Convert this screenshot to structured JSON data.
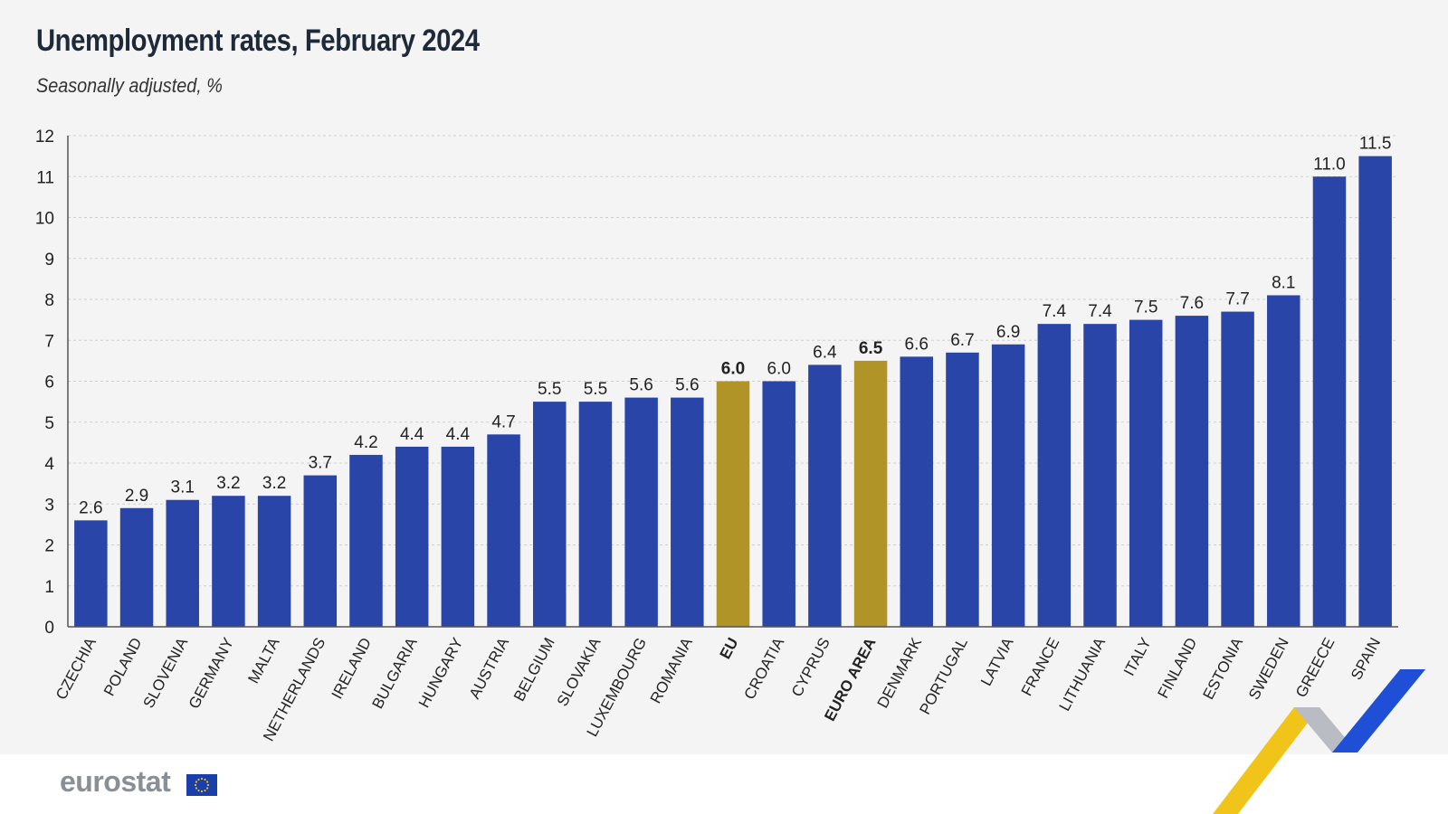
{
  "header": {
    "title": "Unemployment rates, February 2024",
    "subtitle": "Seasonally adjusted, %"
  },
  "footer": {
    "logo_text": "eurostat",
    "logo_flag_icon": "eu-flag-icon"
  },
  "colors": {
    "bar": "#2a45a8",
    "highlight": "#b09428",
    "grid": "#cfcfcf",
    "axis": "#555555",
    "text": "#222222",
    "deco_yellow": "#f0c419",
    "deco_grey": "#b9bcc2",
    "deco_blue": "#1f4fd6"
  },
  "chart_data": {
    "type": "bar",
    "title": "Unemployment rates, February 2024",
    "subtitle": "Seasonally adjusted, %",
    "xlabel": "",
    "ylabel": "",
    "ylim": [
      0,
      12
    ],
    "yticks": [
      0,
      1,
      2,
      3,
      4,
      5,
      6,
      7,
      8,
      9,
      10,
      11,
      12
    ],
    "grid": true,
    "categories": [
      "CZECHIA",
      "POLAND",
      "SLOVENIA",
      "GERMANY",
      "MALTA",
      "NETHERLANDS",
      "IRELAND",
      "BULGARIA",
      "HUNGARY",
      "AUSTRIA",
      "BELGIUM",
      "SLOVAKIA",
      "LUXEMBOURG",
      "ROMANIA",
      "EU",
      "CROATIA",
      "CYPRUS",
      "EURO AREA",
      "DENMARK",
      "PORTUGAL",
      "LATVIA",
      "FRANCE",
      "LITHUANIA",
      "ITALY",
      "FINLAND",
      "ESTONIA",
      "SWEDEN",
      "GREECE",
      "SPAIN"
    ],
    "values": [
      2.6,
      2.9,
      3.1,
      3.2,
      3.2,
      3.7,
      4.2,
      4.4,
      4.4,
      4.7,
      5.5,
      5.5,
      5.6,
      5.6,
      6.0,
      6.0,
      6.4,
      6.5,
      6.6,
      6.7,
      6.9,
      7.4,
      7.4,
      7.5,
      7.6,
      7.7,
      8.1,
      11.0,
      11.5
    ],
    "labels": [
      "2.6",
      "2.9",
      "3.1",
      "3.2",
      "3.2",
      "3.7",
      "4.2",
      "4.4",
      "4.4",
      "4.7",
      "5.5",
      "5.5",
      "5.6",
      "5.6",
      "6.0",
      "6.0",
      "6.4",
      "6.5",
      "6.6",
      "6.7",
      "6.9",
      "7.4",
      "7.4",
      "7.5",
      "7.6",
      "7.7",
      "8.1",
      "11.0",
      "11.5"
    ],
    "highlighted": [
      "EU",
      "EURO AREA"
    ]
  }
}
